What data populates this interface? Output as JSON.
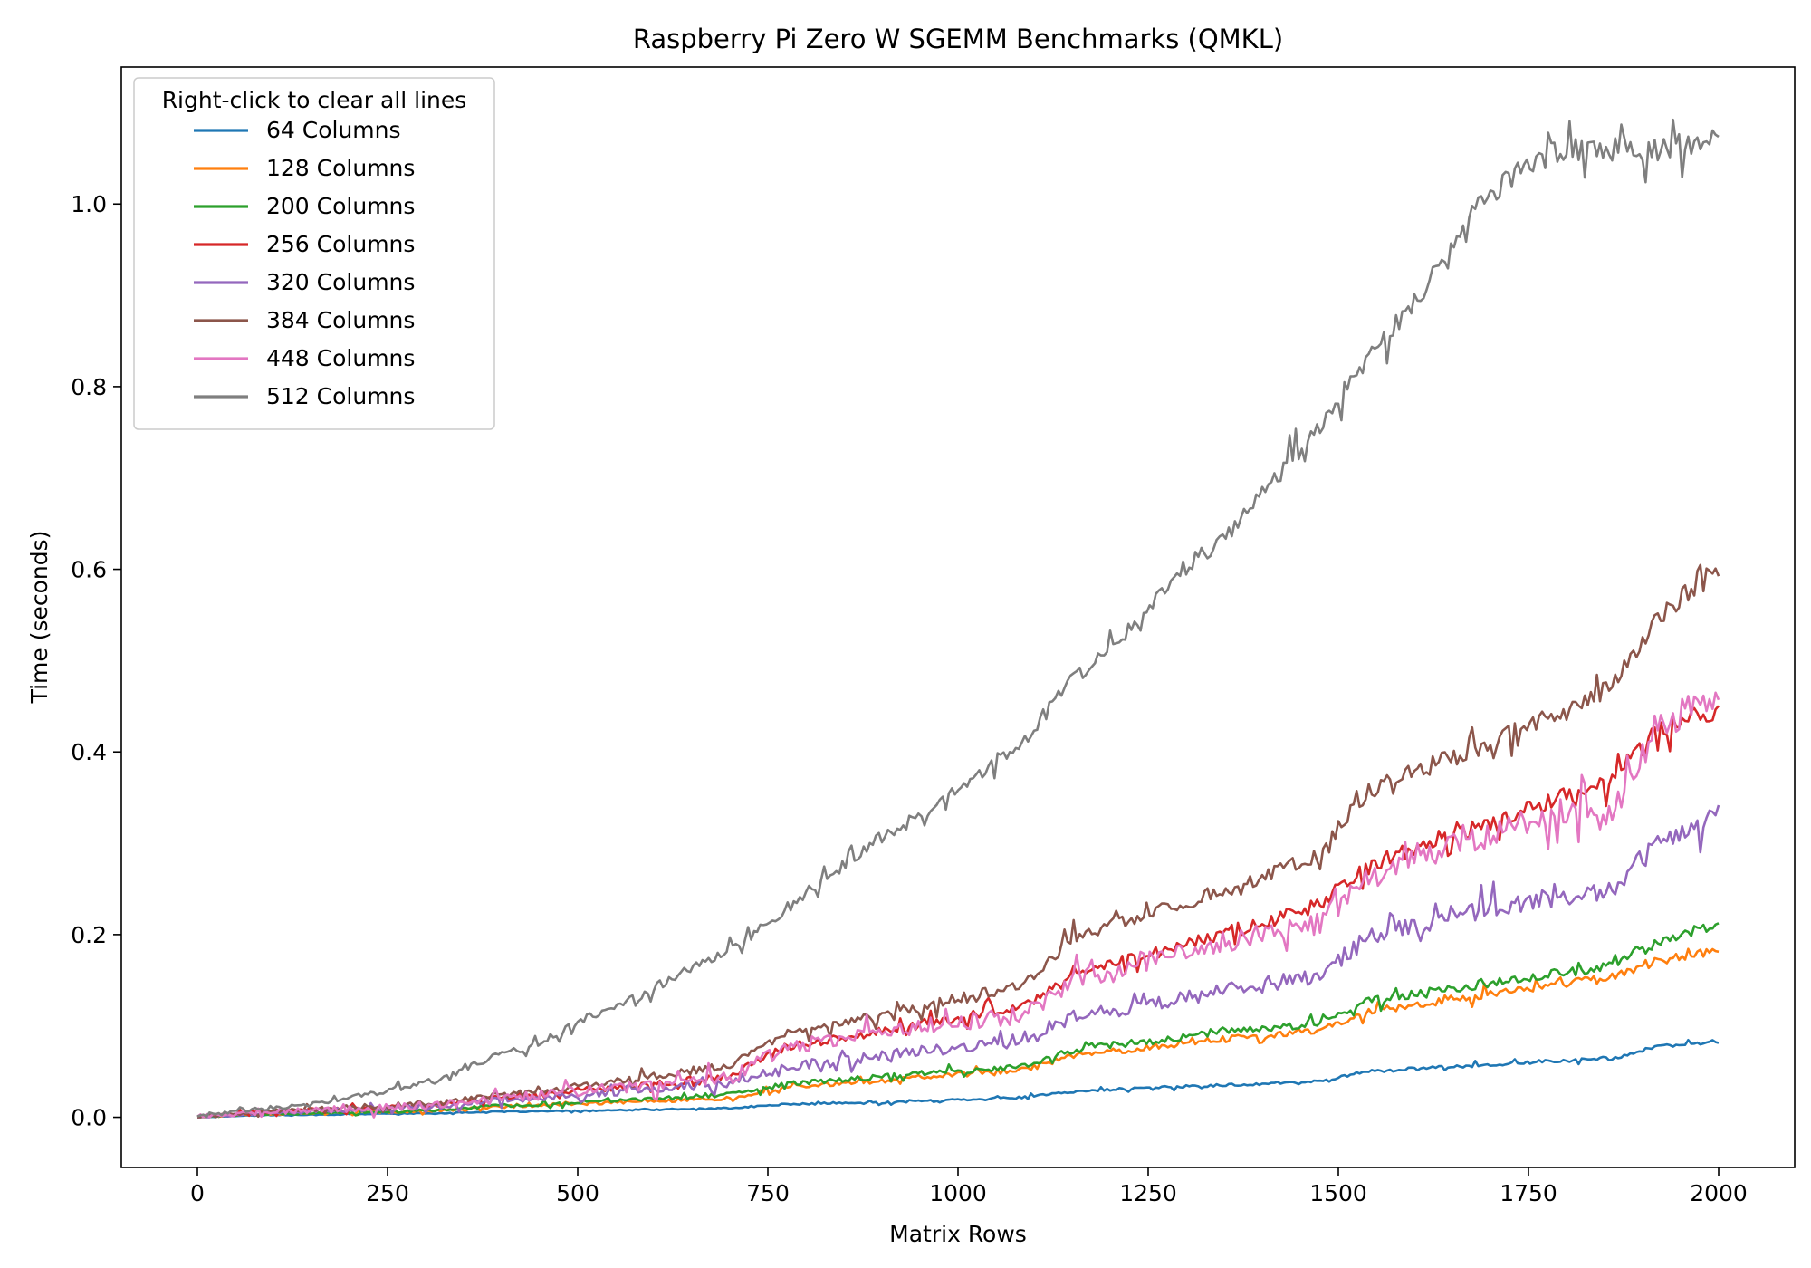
{
  "chart_data": {
    "type": "line",
    "title": "Raspberry Pi Zero W SGEMM Benchmarks (QMKL)",
    "xlabel": "Matrix Rows",
    "ylabel": "Time (seconds)",
    "xlim": [
      -100,
      2100
    ],
    "ylim": [
      -0.055,
      1.15
    ],
    "xticks": [
      0,
      250,
      500,
      750,
      1000,
      1250,
      1500,
      1750,
      2000
    ],
    "yticks": [
      0.0,
      0.2,
      0.4,
      0.6,
      0.8,
      1.0
    ],
    "xtick_labels": [
      "0",
      "250",
      "500",
      "750",
      "1000",
      "1250",
      "1500",
      "1750",
      "2000"
    ],
    "ytick_labels": [
      "0.0",
      "0.2",
      "0.4",
      "0.6",
      "0.8",
      "1.0"
    ],
    "grid": false,
    "legend": {
      "title": "Right-click to clear all lines",
      "placement": "top-left"
    },
    "series": [
      {
        "name": "64 Columns",
        "color": "#1f77b4",
        "noise": 0.006,
        "x": [
          0,
          64,
          128,
          192,
          256,
          320,
          384,
          448,
          512,
          576,
          640,
          704,
          768,
          832,
          896,
          960,
          1024,
          1088,
          1152,
          1216,
          1280,
          1344,
          1408,
          1472,
          1536,
          1600,
          1664,
          1728,
          1792,
          1856,
          1920,
          2000
        ],
        "y": [
          0.0,
          0.002,
          0.0025,
          0.003,
          0.004,
          0.0045,
          0.006,
          0.0065,
          0.007,
          0.008,
          0.009,
          0.01,
          0.014,
          0.015,
          0.016,
          0.018,
          0.02,
          0.022,
          0.028,
          0.031,
          0.033,
          0.035,
          0.037,
          0.039,
          0.05,
          0.053,
          0.056,
          0.059,
          0.062,
          0.064,
          0.077,
          0.083
        ]
      },
      {
        "name": "128 Columns",
        "color": "#ff7f0e",
        "noise": 0.015,
        "x": [
          0,
          64,
          128,
          192,
          256,
          320,
          384,
          448,
          512,
          576,
          640,
          704,
          768,
          832,
          896,
          960,
          1024,
          1088,
          1152,
          1216,
          1280,
          1344,
          1408,
          1472,
          1536,
          1600,
          1664,
          1728,
          1792,
          1856,
          1920,
          2000
        ],
        "y": [
          0.0,
          0.003,
          0.004,
          0.005,
          0.006,
          0.007,
          0.011,
          0.013,
          0.015,
          0.017,
          0.019,
          0.021,
          0.033,
          0.036,
          0.04,
          0.044,
          0.048,
          0.052,
          0.068,
          0.073,
          0.079,
          0.085,
          0.09,
          0.095,
          0.115,
          0.123,
          0.131,
          0.139,
          0.146,
          0.152,
          0.172,
          0.183
        ]
      },
      {
        "name": "200 Columns",
        "color": "#2ca02c",
        "noise": 0.017,
        "x": [
          0,
          64,
          128,
          192,
          256,
          320,
          384,
          448,
          512,
          576,
          640,
          704,
          768,
          832,
          896,
          960,
          1024,
          1088,
          1152,
          1216,
          1280,
          1344,
          1408,
          1472,
          1536,
          1600,
          1664,
          1728,
          1792,
          1856,
          1920,
          2000
        ],
        "y": [
          0.0,
          0.003,
          0.004,
          0.005,
          0.006,
          0.008,
          0.012,
          0.014,
          0.017,
          0.019,
          0.022,
          0.025,
          0.036,
          0.04,
          0.044,
          0.048,
          0.052,
          0.056,
          0.074,
          0.08,
          0.086,
          0.092,
          0.098,
          0.103,
          0.126,
          0.135,
          0.143,
          0.151,
          0.158,
          0.164,
          0.192,
          0.212
        ]
      },
      {
        "name": "256 Columns",
        "color": "#d62728",
        "noise": 0.03,
        "x": [
          0,
          64,
          128,
          192,
          256,
          320,
          384,
          448,
          512,
          576,
          640,
          704,
          768,
          832,
          896,
          960,
          1024,
          1088,
          1152,
          1216,
          1280,
          1344,
          1408,
          1472,
          1536,
          1600,
          1664,
          1728,
          1792,
          1856,
          1920,
          2000
        ],
        "y": [
          0.0,
          0.005,
          0.007,
          0.009,
          0.011,
          0.014,
          0.02,
          0.024,
          0.03,
          0.035,
          0.04,
          0.046,
          0.077,
          0.085,
          0.094,
          0.103,
          0.112,
          0.122,
          0.16,
          0.172,
          0.185,
          0.2,
          0.215,
          0.232,
          0.275,
          0.295,
          0.312,
          0.33,
          0.35,
          0.365,
          0.425,
          0.445
        ]
      },
      {
        "name": "320 Columns",
        "color": "#9467bd",
        "noise": 0.035,
        "x": [
          0,
          64,
          128,
          192,
          256,
          320,
          384,
          448,
          512,
          576,
          640,
          704,
          768,
          832,
          896,
          960,
          1024,
          1088,
          1152,
          1216,
          1280,
          1344,
          1408,
          1472,
          1536,
          1600,
          1664,
          1728,
          1792,
          1856,
          1920,
          2000
        ],
        "y": [
          0.0,
          0.004,
          0.006,
          0.008,
          0.01,
          0.012,
          0.018,
          0.021,
          0.025,
          0.029,
          0.033,
          0.037,
          0.055,
          0.061,
          0.067,
          0.073,
          0.079,
          0.083,
          0.11,
          0.118,
          0.127,
          0.137,
          0.146,
          0.153,
          0.195,
          0.21,
          0.222,
          0.233,
          0.241,
          0.247,
          0.3,
          0.33
        ]
      },
      {
        "name": "384 Columns",
        "color": "#8c564b",
        "noise": 0.035,
        "x": [
          0,
          64,
          128,
          192,
          256,
          320,
          384,
          448,
          512,
          576,
          640,
          704,
          768,
          832,
          896,
          960,
          1024,
          1088,
          1152,
          1216,
          1280,
          1344,
          1408,
          1472,
          1536,
          1600,
          1664,
          1728,
          1792,
          1856,
          1920,
          2000
        ],
        "y": [
          0.0,
          0.005,
          0.008,
          0.01,
          0.013,
          0.016,
          0.023,
          0.028,
          0.035,
          0.042,
          0.05,
          0.058,
          0.092,
          0.102,
          0.112,
          0.122,
          0.133,
          0.145,
          0.198,
          0.214,
          0.23,
          0.248,
          0.265,
          0.285,
          0.355,
          0.378,
          0.398,
          0.42,
          0.445,
          0.47,
          0.55,
          0.6
        ]
      },
      {
        "name": "448 Columns",
        "color": "#e377c2",
        "noise": 0.05,
        "x": [
          0,
          64,
          128,
          192,
          256,
          320,
          384,
          448,
          512,
          576,
          640,
          704,
          768,
          832,
          896,
          960,
          1024,
          1088,
          1152,
          1216,
          1280,
          1344,
          1408,
          1472,
          1536,
          1600,
          1664,
          1728,
          1792,
          1856,
          1920,
          2000
        ],
        "y": [
          0.0,
          0.005,
          0.007,
          0.009,
          0.011,
          0.014,
          0.02,
          0.024,
          0.029,
          0.034,
          0.039,
          0.044,
          0.075,
          0.085,
          0.093,
          0.1,
          0.106,
          0.112,
          0.15,
          0.165,
          0.178,
          0.192,
          0.2,
          0.21,
          0.26,
          0.285,
          0.3,
          0.318,
          0.33,
          0.33,
          0.43,
          0.46
        ]
      },
      {
        "name": "512 Columns",
        "color": "#7f7f7f",
        "noise": 0.04,
        "x": [
          0,
          64,
          128,
          192,
          256,
          320,
          384,
          448,
          512,
          576,
          640,
          704,
          768,
          832,
          896,
          960,
          1024,
          1088,
          1152,
          1216,
          1280,
          1344,
          1408,
          1472,
          1536,
          1600,
          1664,
          1728,
          1792,
          1856,
          1920,
          2000
        ],
        "y": [
          0.0,
          0.008,
          0.012,
          0.02,
          0.03,
          0.04,
          0.065,
          0.08,
          0.11,
          0.13,
          0.16,
          0.185,
          0.225,
          0.265,
          0.305,
          0.335,
          0.375,
          0.415,
          0.48,
          0.525,
          0.59,
          0.63,
          0.69,
          0.755,
          0.83,
          0.89,
          0.98,
          1.03,
          1.06,
          1.06,
          1.06,
          1.07
        ]
      }
    ]
  }
}
